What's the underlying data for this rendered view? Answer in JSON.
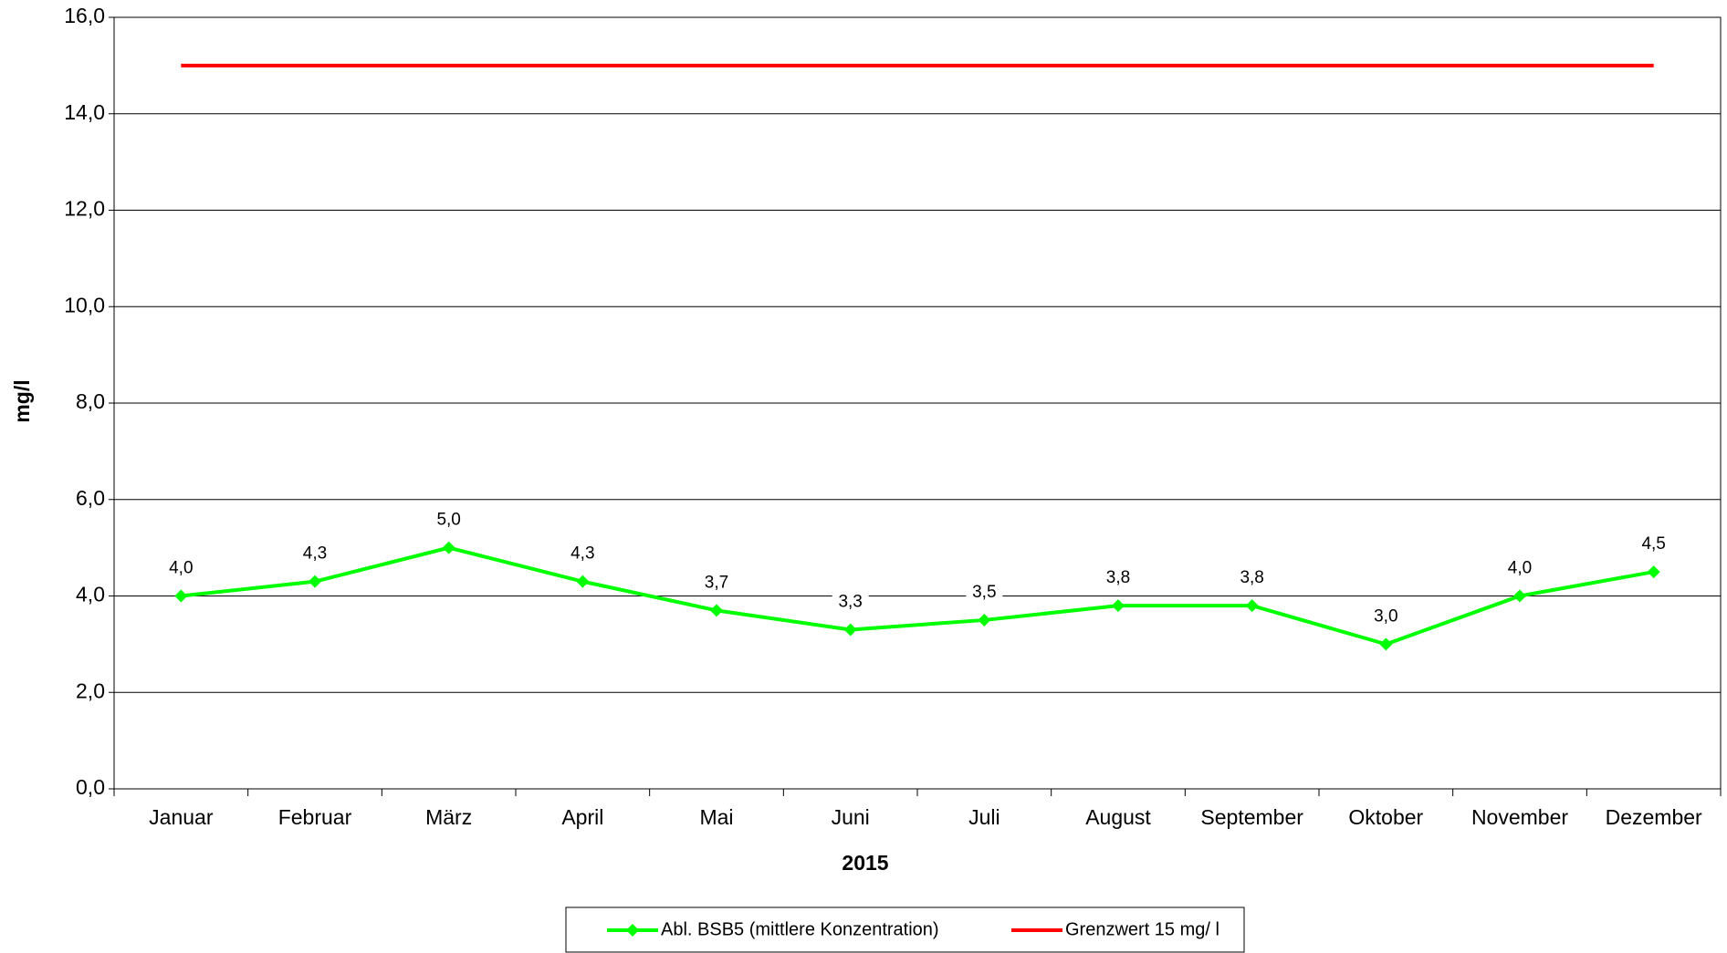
{
  "chart_data": {
    "type": "line",
    "ylabel": "mg/l",
    "xlabel": "2015",
    "categories": [
      "Januar",
      "Februar",
      "März",
      "April",
      "Mai",
      "Juni",
      "Juli",
      "August",
      "September",
      "Oktober",
      "November",
      "Dezember"
    ],
    "series": [
      {
        "name": "Abl. BSB5 (mittlere Konzentration)",
        "color": "#00ff00",
        "marker": "diamond",
        "values": [
          4.0,
          4.3,
          5.0,
          4.3,
          3.7,
          3.3,
          3.5,
          3.8,
          3.8,
          3.0,
          4.0,
          4.5
        ],
        "value_labels": [
          "4,0",
          "4,3",
          "5,0",
          "4,3",
          "3,7",
          "3,3",
          "3,5",
          "3,8",
          "3,8",
          "3,0",
          "4,0",
          "4,5"
        ]
      },
      {
        "name": "Grenzwert 15 mg/ l",
        "color": "#ff0000",
        "values": [
          15,
          15,
          15,
          15,
          15,
          15,
          15,
          15,
          15,
          15,
          15,
          15
        ]
      }
    ],
    "ylim": [
      0,
      16
    ],
    "yticks": [
      {
        "value": 0,
        "label": "0,0"
      },
      {
        "value": 2,
        "label": "2,0"
      },
      {
        "value": 4,
        "label": "4,0"
      },
      {
        "value": 6,
        "label": "6,0"
      },
      {
        "value": 8,
        "label": "8,0"
      },
      {
        "value": 10,
        "label": "10,0"
      },
      {
        "value": 12,
        "label": "12,0"
      },
      {
        "value": 14,
        "label": "14,0"
      },
      {
        "value": 16,
        "label": "16,0"
      }
    ],
    "grid": true,
    "legend": "bottom"
  }
}
